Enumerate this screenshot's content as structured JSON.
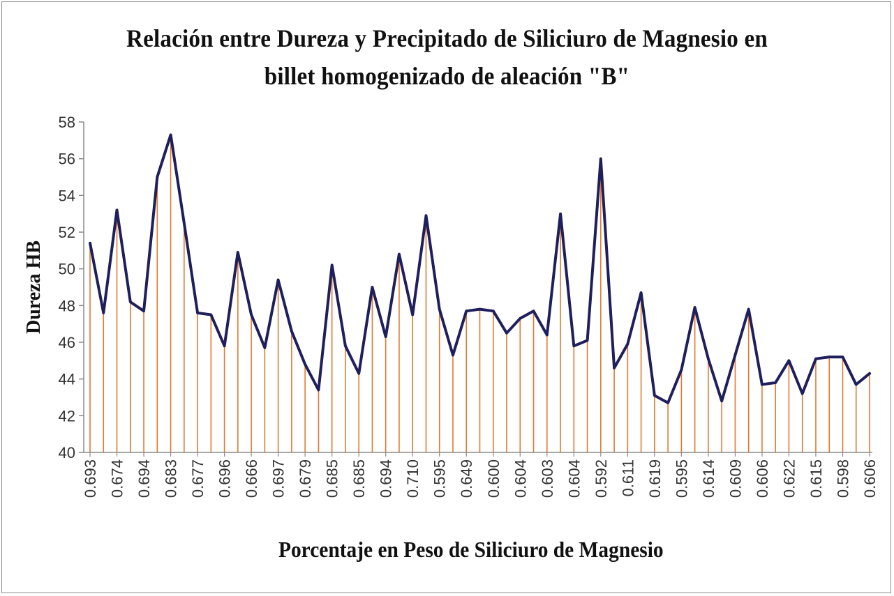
{
  "chart_data": {
    "type": "line",
    "title_line1": "Relación entre Dureza y Precipitado de  Siliciuro  de Magnesio en",
    "title_line2": "billet  homogenizado de aleación \"B\"",
    "xlabel": "Porcentaje en Peso de  Siliciuro de Magnesio",
    "ylabel": "Dureza HB",
    "ylim": [
      40,
      58
    ],
    "yticks": [
      40,
      42,
      44,
      46,
      48,
      50,
      52,
      54,
      56,
      58
    ],
    "x_tick_labels": [
      "0.693",
      "0.674",
      "0.694",
      "0.683",
      "0.677",
      "0.696",
      "0.666",
      "0.697",
      "0.679",
      "0.685",
      "0.685",
      "0.694",
      "0.710",
      "0.595",
      "0.649",
      "0.600",
      "0.604",
      "0.603",
      "0.604",
      "0.592",
      "0.611",
      "0.619",
      "0.595",
      "0.614",
      "0.609",
      "0.606",
      "0.622",
      "0.615",
      "0.598",
      "0.606"
    ],
    "values": [
      51.4,
      47.6,
      53.2,
      48.2,
      47.7,
      55.0,
      57.3,
      52.5,
      47.6,
      47.5,
      45.8,
      50.9,
      47.5,
      45.7,
      49.4,
      46.6,
      44.8,
      43.4,
      50.2,
      45.8,
      44.3,
      49.0,
      46.3,
      50.8,
      47.5,
      52.9,
      47.8,
      45.3,
      47.7,
      47.8,
      47.7,
      46.5,
      47.3,
      47.7,
      46.4,
      53.0,
      45.8,
      46.1,
      56.0,
      44.6,
      45.9,
      48.7,
      43.1,
      42.7,
      44.5,
      47.9,
      45.1,
      42.8,
      45.3,
      47.8,
      43.7,
      43.8,
      45.0,
      43.2,
      45.1,
      45.2,
      45.2,
      43.7,
      44.3
    ],
    "line_color": "#1f1f5c",
    "drop_line_color": "#e07a30",
    "grid": false,
    "legend": "none"
  }
}
